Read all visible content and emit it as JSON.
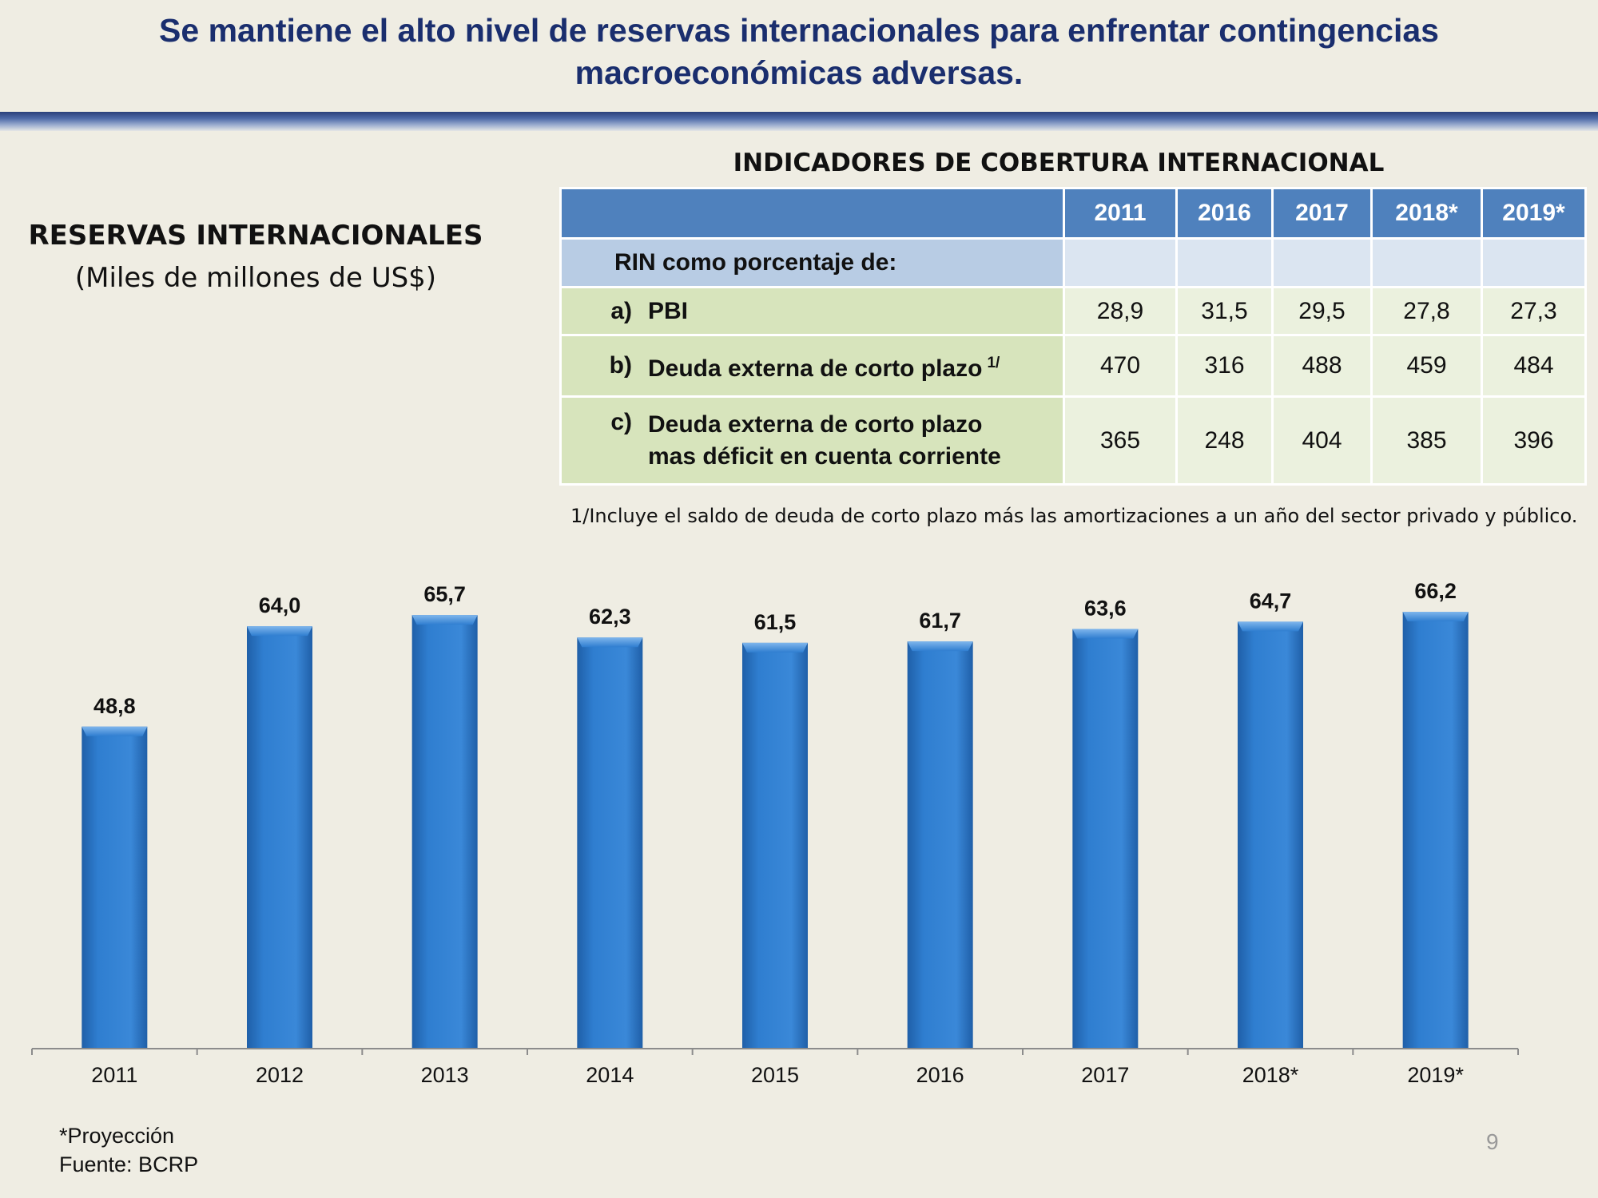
{
  "slide": {
    "title_line1": "Se mantiene el alto nivel de reservas internacionales para enfrentar contingencias",
    "title_line2": "macroeconómicas adversas.",
    "page_number": "9"
  },
  "chart_heading": {
    "title": "RESERVAS INTERNACIONALES",
    "subtitle": "(Miles de millones de US$)"
  },
  "table": {
    "title": "INDICADORES DE COBERTURA INTERNACIONAL",
    "years": [
      "2011",
      "2016",
      "2017",
      "2018*",
      "2019*"
    ],
    "section_label": "RIN como porcentaje de:",
    "rows": [
      {
        "letter": "a)",
        "line1": "PBI",
        "line2": "",
        "sup": "",
        "values": [
          "28,9",
          "31,5",
          "29,5",
          "27,8",
          "27,3"
        ]
      },
      {
        "letter": "b)",
        "line1": "Deuda externa de corto plazo",
        "line2": "",
        "sup": "1/",
        "values": [
          "470",
          "316",
          "488",
          "459",
          "484"
        ]
      },
      {
        "letter": "c)",
        "line1": "Deuda externa de corto plazo",
        "line2": "mas déficit en cuenta corriente",
        "sup": "",
        "values": [
          "365",
          "248",
          "404",
          "385",
          "396"
        ]
      }
    ],
    "footnote": "1/Incluye el saldo de deuda de corto plazo más las amortizaciones a un año del sector privado y público."
  },
  "chart_data": {
    "type": "bar",
    "title": "RESERVAS INTERNACIONALES",
    "ylabel": "(Miles de millones de US$)",
    "categories": [
      "2011",
      "2012",
      "2013",
      "2014",
      "2015",
      "2016",
      "2017",
      "2018*",
      "2019*"
    ],
    "values": [
      48.8,
      64.0,
      65.7,
      62.3,
      61.5,
      61.7,
      63.6,
      64.7,
      66.2
    ],
    "value_labels": [
      "48,8",
      "64,0",
      "65,7",
      "62,3",
      "61,5",
      "61,7",
      "63,6",
      "64,7",
      "66,2"
    ],
    "ylim": [
      0,
      66.2
    ],
    "grid": false,
    "bar_color": "#2f7ed0",
    "axis_color": "#8c8c8c"
  },
  "notes": {
    "projection": "*Proyección",
    "source": "Fuente: BCRP"
  }
}
